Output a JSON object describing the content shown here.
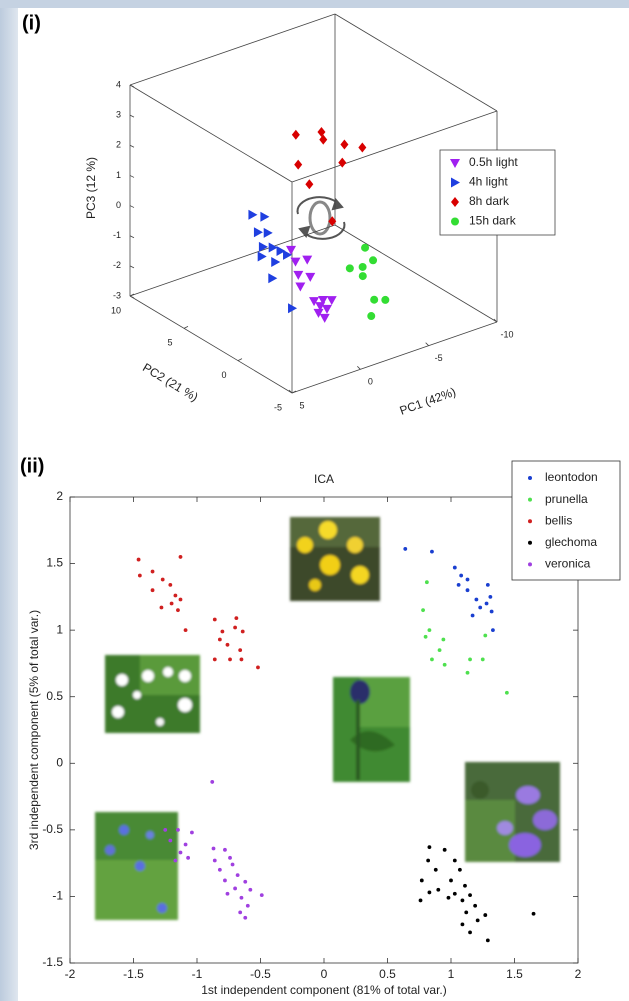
{
  "chart_data": [
    {
      "type": "scatter3d",
      "panel_label": "(i)",
      "xlabel": "PC1 (42%)",
      "ylabel": "PC2 (21 %)",
      "zlabel": "PC3 (12 %)",
      "xlim": [
        -10,
        5
      ],
      "xticks": [
        -10,
        -5,
        0,
        5
      ],
      "ylim": [
        -5,
        10
      ],
      "yticks": [
        -5,
        0,
        5,
        10
      ],
      "zlim": [
        -3,
        4
      ],
      "zticks": [
        -3,
        -2,
        -1,
        0,
        1,
        2,
        3,
        4
      ],
      "series": [
        {
          "name": "0.5h light",
          "color": "#a020f0",
          "marker": "triangle-down",
          "x": [
            -3.7,
            -3.0,
            -3.7,
            -2.1,
            -2.5,
            -1.3,
            -0.8,
            -1.3,
            -1.7,
            -0.7,
            -0.8,
            -0.1,
            0.0
          ],
          "y": [
            6.1,
            4.8,
            4.6,
            3.4,
            2.8,
            2.2,
            0.3,
            0.1,
            -0.2,
            -0.4,
            -0.9,
            -1.0,
            -1.7
          ],
          "z": [
            -2,
            -2,
            -2,
            -2,
            -2,
            -2,
            -2,
            -2,
            -2,
            -2,
            -2,
            -2,
            -2
          ]
        },
        {
          "name": "4h light",
          "color": "#1f3fe0",
          "marker": "triangle-right",
          "x": [
            -2.3,
            -2.7,
            -1.2,
            -1.6,
            -0.3,
            -0.7,
            -0.8,
            -0.8,
            0.5,
            0.3,
            1.7,
            3.1
          ],
          "y": [
            7.9,
            7.3,
            6.0,
            5.6,
            4.4,
            4.0,
            3.4,
            2.8,
            3.5,
            2.5,
            1.0,
            -2.6
          ],
          "z": [
            -1,
            -1,
            -1,
            -1,
            -1,
            -1,
            -1,
            -1,
            -1,
            -1,
            -1,
            -1
          ]
        },
        {
          "name": "8h dark",
          "color": "#d80000",
          "marker": "diamond",
          "x": [
            -3.5,
            -4.9,
            -4.4,
            -5.0,
            -5.6,
            -3.5,
            -1.3,
            -0.3,
            1.5
          ],
          "y": [
            5.4,
            4.8,
            4.0,
            2.8,
            1.9,
            1.1,
            2.4,
            0.1,
            -4.3
          ],
          "z": [
            2,
            2,
            2,
            2,
            2,
            2,
            2,
            2,
            2
          ]
        },
        {
          "name": "15h dark",
          "color": "#33dd33",
          "marker": "circle",
          "x": [
            -7.3,
            -6.7,
            -5.0,
            -5.7,
            -5.0,
            -3.7,
            -4.2,
            -2.3
          ],
          "y": [
            3.8,
            2.3,
            2.3,
            2.0,
            1.1,
            -1.6,
            -2.0,
            -3.1
          ],
          "z": [
            -2,
            -2,
            -2,
            -2,
            -2,
            -2,
            -2,
            -2
          ]
        }
      ]
    },
    {
      "type": "scatter",
      "panel_label": "(ii)",
      "title": "ICA",
      "xlabel": "1st independent component (81% of total var.)",
      "ylabel": "3rd independent component (5% of total var.)",
      "xlim": [
        -2,
        2
      ],
      "xticks": [
        -2,
        -1.5,
        -1,
        -0.5,
        0,
        0.5,
        1,
        1.5,
        2
      ],
      "ylim": [
        -1.5,
        2
      ],
      "yticks": [
        -1.5,
        -1,
        -0.5,
        0,
        0.5,
        1,
        1.5,
        2
      ],
      "series": [
        {
          "name": "leontodon",
          "color": "#1a3fd0",
          "x": [
            0.64,
            0.85,
            1.03,
            1.08,
            1.13,
            1.06,
            1.13,
            1.29,
            1.31,
            1.2,
            1.28,
            1.23,
            1.32,
            1.33,
            1.17
          ],
          "values": [
            1.61,
            1.59,
            1.47,
            1.41,
            1.38,
            1.34,
            1.3,
            1.34,
            1.25,
            1.23,
            1.2,
            1.17,
            1.14,
            1.0,
            1.11
          ]
        },
        {
          "name": "prunella",
          "color": "#4ee04e",
          "x": [
            0.81,
            0.78,
            0.83,
            0.8,
            0.94,
            0.91,
            0.85,
            0.95,
            1.15,
            1.25,
            1.27,
            1.13,
            1.44
          ],
          "values": [
            1.36,
            1.15,
            1.0,
            0.95,
            0.93,
            0.85,
            0.78,
            0.74,
            0.78,
            0.78,
            0.96,
            0.68,
            0.53
          ]
        },
        {
          "name": "bellis",
          "color": "#d02020",
          "x": [
            -1.46,
            -1.35,
            -1.13,
            -1.45,
            -1.27,
            -1.21,
            -1.35,
            -1.17,
            -1.2,
            -1.13,
            -1.28,
            -1.15,
            -1.09,
            -0.86,
            -0.69,
            -0.7,
            -0.64,
            -0.8,
            -0.82,
            -0.76,
            -0.86,
            -0.66,
            -0.65,
            -0.52,
            -0.74
          ],
          "values": [
            1.53,
            1.44,
            1.55,
            1.41,
            1.38,
            1.34,
            1.3,
            1.26,
            1.2,
            1.23,
            1.17,
            1.15,
            1.0,
            1.08,
            1.09,
            1.02,
            0.99,
            0.99,
            0.93,
            0.89,
            0.78,
            0.85,
            0.78,
            0.72,
            0.78
          ]
        },
        {
          "name": "glechoma",
          "color": "#000000",
          "x": [
            0.83,
            0.95,
            0.82,
            1.03,
            0.88,
            1.07,
            0.77,
            1.0,
            1.11,
            0.9,
            1.03,
            1.15,
            1.09,
            0.98,
            1.19,
            0.83,
            0.76,
            1.12,
            1.21,
            1.09,
            1.27,
            1.65,
            1.15,
            1.29
          ],
          "values": [
            -0.63,
            -0.65,
            -0.73,
            -0.73,
            -0.8,
            -0.8,
            -0.88,
            -0.88,
            -0.92,
            -0.95,
            -0.98,
            -0.99,
            -1.03,
            -1.01,
            -1.07,
            -0.97,
            -1.03,
            -1.12,
            -1.18,
            -1.21,
            -1.14,
            -1.13,
            -1.27,
            -1.33
          ]
        },
        {
          "name": "veronica",
          "color": "#a040e0",
          "x": [
            -0.88,
            -1.25,
            -1.15,
            -1.04,
            -1.21,
            -1.09,
            -1.13,
            -1.07,
            -1.17,
            -0.87,
            -0.78,
            -0.74,
            -0.86,
            -0.72,
            -0.82,
            -0.68,
            -0.78,
            -0.62,
            -0.7,
            -0.58,
            -0.76,
            -0.65,
            -0.49,
            -0.6,
            -0.66,
            -0.62
          ],
          "values": [
            -0.14,
            -0.5,
            -0.5,
            -0.52,
            -0.58,
            -0.61,
            -0.67,
            -0.71,
            -0.73,
            -0.64,
            -0.65,
            -0.71,
            -0.73,
            -0.76,
            -0.8,
            -0.84,
            -0.88,
            -0.89,
            -0.94,
            -0.95,
            -0.98,
            -1.01,
            -0.99,
            -1.07,
            -1.12,
            -1.16
          ]
        }
      ]
    }
  ]
}
